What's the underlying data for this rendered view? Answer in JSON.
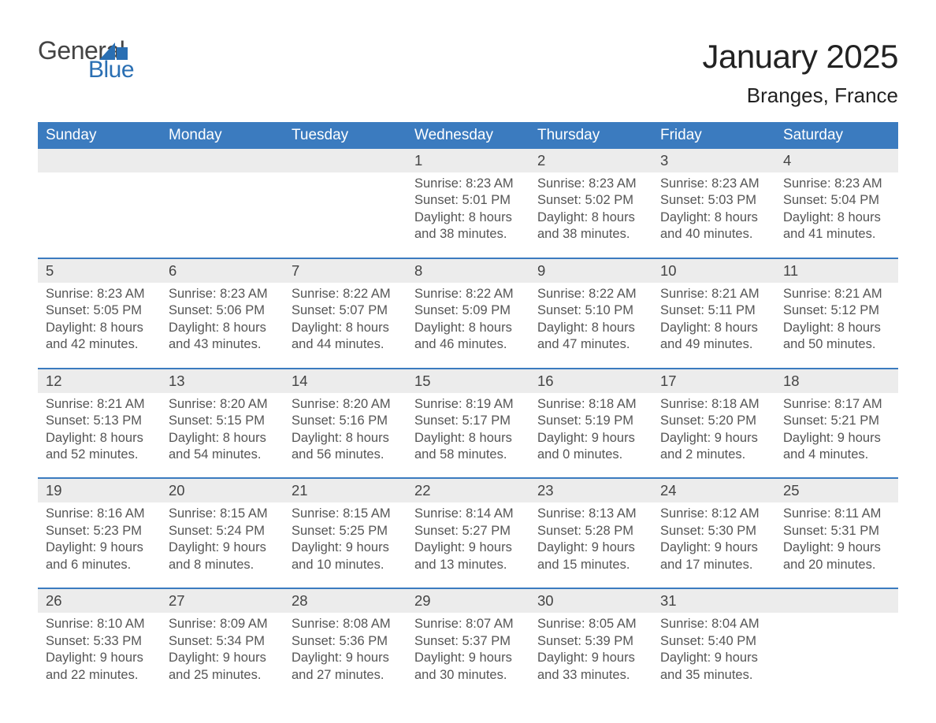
{
  "brand": {
    "word1": "General",
    "word2": "Blue",
    "mark_color": "#2a6fb3"
  },
  "title": "January 2025",
  "subtitle": "Branges, France",
  "colors": {
    "header_bg": "#3b7bbf",
    "header_text": "#ffffff",
    "stripe_bg": "#ececec",
    "row_border": "#3b7bbf",
    "text": "#333333",
    "detail_text": "#555555",
    "page_bg": "#ffffff"
  },
  "typography": {
    "title_fontsize": 42,
    "subtitle_fontsize": 26,
    "dayhead_fontsize": 19,
    "daynum_fontsize": 18.5,
    "detail_fontsize": 16.5,
    "font_family": "Arial"
  },
  "day_headers": [
    "Sunday",
    "Monday",
    "Tuesday",
    "Wednesday",
    "Thursday",
    "Friday",
    "Saturday"
  ],
  "weeks": [
    [
      {
        "day": "",
        "sunrise": "",
        "sunset": "",
        "daylight1": "",
        "daylight2": ""
      },
      {
        "day": "",
        "sunrise": "",
        "sunset": "",
        "daylight1": "",
        "daylight2": ""
      },
      {
        "day": "",
        "sunrise": "",
        "sunset": "",
        "daylight1": "",
        "daylight2": ""
      },
      {
        "day": "1",
        "sunrise": "Sunrise: 8:23 AM",
        "sunset": "Sunset: 5:01 PM",
        "daylight1": "Daylight: 8 hours",
        "daylight2": "and 38 minutes."
      },
      {
        "day": "2",
        "sunrise": "Sunrise: 8:23 AM",
        "sunset": "Sunset: 5:02 PM",
        "daylight1": "Daylight: 8 hours",
        "daylight2": "and 38 minutes."
      },
      {
        "day": "3",
        "sunrise": "Sunrise: 8:23 AM",
        "sunset": "Sunset: 5:03 PM",
        "daylight1": "Daylight: 8 hours",
        "daylight2": "and 40 minutes."
      },
      {
        "day": "4",
        "sunrise": "Sunrise: 8:23 AM",
        "sunset": "Sunset: 5:04 PM",
        "daylight1": "Daylight: 8 hours",
        "daylight2": "and 41 minutes."
      }
    ],
    [
      {
        "day": "5",
        "sunrise": "Sunrise: 8:23 AM",
        "sunset": "Sunset: 5:05 PM",
        "daylight1": "Daylight: 8 hours",
        "daylight2": "and 42 minutes."
      },
      {
        "day": "6",
        "sunrise": "Sunrise: 8:23 AM",
        "sunset": "Sunset: 5:06 PM",
        "daylight1": "Daylight: 8 hours",
        "daylight2": "and 43 minutes."
      },
      {
        "day": "7",
        "sunrise": "Sunrise: 8:22 AM",
        "sunset": "Sunset: 5:07 PM",
        "daylight1": "Daylight: 8 hours",
        "daylight2": "and 44 minutes."
      },
      {
        "day": "8",
        "sunrise": "Sunrise: 8:22 AM",
        "sunset": "Sunset: 5:09 PM",
        "daylight1": "Daylight: 8 hours",
        "daylight2": "and 46 minutes."
      },
      {
        "day": "9",
        "sunrise": "Sunrise: 8:22 AM",
        "sunset": "Sunset: 5:10 PM",
        "daylight1": "Daylight: 8 hours",
        "daylight2": "and 47 minutes."
      },
      {
        "day": "10",
        "sunrise": "Sunrise: 8:21 AM",
        "sunset": "Sunset: 5:11 PM",
        "daylight1": "Daylight: 8 hours",
        "daylight2": "and 49 minutes."
      },
      {
        "day": "11",
        "sunrise": "Sunrise: 8:21 AM",
        "sunset": "Sunset: 5:12 PM",
        "daylight1": "Daylight: 8 hours",
        "daylight2": "and 50 minutes."
      }
    ],
    [
      {
        "day": "12",
        "sunrise": "Sunrise: 8:21 AM",
        "sunset": "Sunset: 5:13 PM",
        "daylight1": "Daylight: 8 hours",
        "daylight2": "and 52 minutes."
      },
      {
        "day": "13",
        "sunrise": "Sunrise: 8:20 AM",
        "sunset": "Sunset: 5:15 PM",
        "daylight1": "Daylight: 8 hours",
        "daylight2": "and 54 minutes."
      },
      {
        "day": "14",
        "sunrise": "Sunrise: 8:20 AM",
        "sunset": "Sunset: 5:16 PM",
        "daylight1": "Daylight: 8 hours",
        "daylight2": "and 56 minutes."
      },
      {
        "day": "15",
        "sunrise": "Sunrise: 8:19 AM",
        "sunset": "Sunset: 5:17 PM",
        "daylight1": "Daylight: 8 hours",
        "daylight2": "and 58 minutes."
      },
      {
        "day": "16",
        "sunrise": "Sunrise: 8:18 AM",
        "sunset": "Sunset: 5:19 PM",
        "daylight1": "Daylight: 9 hours",
        "daylight2": "and 0 minutes."
      },
      {
        "day": "17",
        "sunrise": "Sunrise: 8:18 AM",
        "sunset": "Sunset: 5:20 PM",
        "daylight1": "Daylight: 9 hours",
        "daylight2": "and 2 minutes."
      },
      {
        "day": "18",
        "sunrise": "Sunrise: 8:17 AM",
        "sunset": "Sunset: 5:21 PM",
        "daylight1": "Daylight: 9 hours",
        "daylight2": "and 4 minutes."
      }
    ],
    [
      {
        "day": "19",
        "sunrise": "Sunrise: 8:16 AM",
        "sunset": "Sunset: 5:23 PM",
        "daylight1": "Daylight: 9 hours",
        "daylight2": "and 6 minutes."
      },
      {
        "day": "20",
        "sunrise": "Sunrise: 8:15 AM",
        "sunset": "Sunset: 5:24 PM",
        "daylight1": "Daylight: 9 hours",
        "daylight2": "and 8 minutes."
      },
      {
        "day": "21",
        "sunrise": "Sunrise: 8:15 AM",
        "sunset": "Sunset: 5:25 PM",
        "daylight1": "Daylight: 9 hours",
        "daylight2": "and 10 minutes."
      },
      {
        "day": "22",
        "sunrise": "Sunrise: 8:14 AM",
        "sunset": "Sunset: 5:27 PM",
        "daylight1": "Daylight: 9 hours",
        "daylight2": "and 13 minutes."
      },
      {
        "day": "23",
        "sunrise": "Sunrise: 8:13 AM",
        "sunset": "Sunset: 5:28 PM",
        "daylight1": "Daylight: 9 hours",
        "daylight2": "and 15 minutes."
      },
      {
        "day": "24",
        "sunrise": "Sunrise: 8:12 AM",
        "sunset": "Sunset: 5:30 PM",
        "daylight1": "Daylight: 9 hours",
        "daylight2": "and 17 minutes."
      },
      {
        "day": "25",
        "sunrise": "Sunrise: 8:11 AM",
        "sunset": "Sunset: 5:31 PM",
        "daylight1": "Daylight: 9 hours",
        "daylight2": "and 20 minutes."
      }
    ],
    [
      {
        "day": "26",
        "sunrise": "Sunrise: 8:10 AM",
        "sunset": "Sunset: 5:33 PM",
        "daylight1": "Daylight: 9 hours",
        "daylight2": "and 22 minutes."
      },
      {
        "day": "27",
        "sunrise": "Sunrise: 8:09 AM",
        "sunset": "Sunset: 5:34 PM",
        "daylight1": "Daylight: 9 hours",
        "daylight2": "and 25 minutes."
      },
      {
        "day": "28",
        "sunrise": "Sunrise: 8:08 AM",
        "sunset": "Sunset: 5:36 PM",
        "daylight1": "Daylight: 9 hours",
        "daylight2": "and 27 minutes."
      },
      {
        "day": "29",
        "sunrise": "Sunrise: 8:07 AM",
        "sunset": "Sunset: 5:37 PM",
        "daylight1": "Daylight: 9 hours",
        "daylight2": "and 30 minutes."
      },
      {
        "day": "30",
        "sunrise": "Sunrise: 8:05 AM",
        "sunset": "Sunset: 5:39 PM",
        "daylight1": "Daylight: 9 hours",
        "daylight2": "and 33 minutes."
      },
      {
        "day": "31",
        "sunrise": "Sunrise: 8:04 AM",
        "sunset": "Sunset: 5:40 PM",
        "daylight1": "Daylight: 9 hours",
        "daylight2": "and 35 minutes."
      },
      {
        "day": "",
        "sunrise": "",
        "sunset": "",
        "daylight1": "",
        "daylight2": ""
      }
    ]
  ]
}
